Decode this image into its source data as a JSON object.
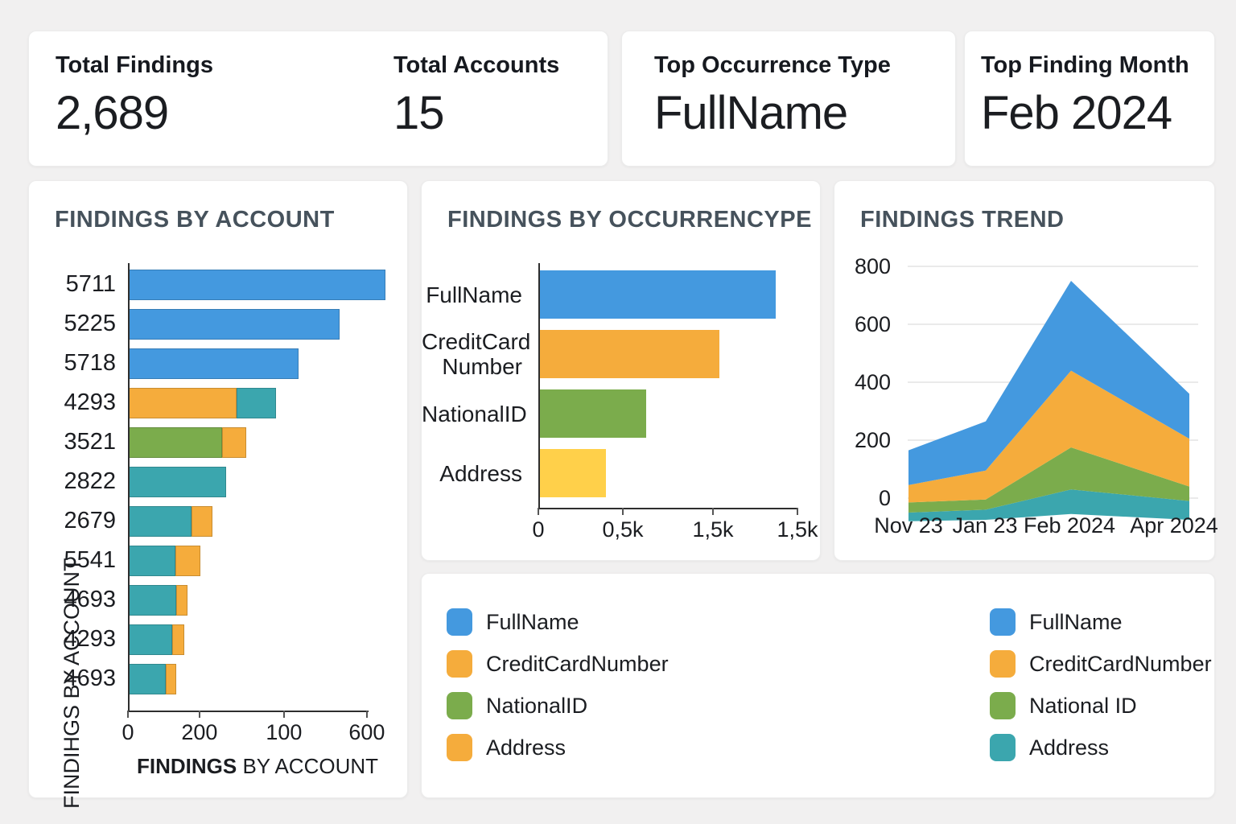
{
  "stats": [
    {
      "label": "Total Findings",
      "value": "2,689"
    },
    {
      "label": "Total Accounts",
      "value": "15"
    },
    {
      "label": "Top Occurrence Type",
      "value": "FullName"
    },
    {
      "label": "Top Finding Month",
      "value": "Feb 2024"
    }
  ],
  "colors": {
    "blue": "#4499DF",
    "orange": "#F5AC3C",
    "green": "#7BAC4C",
    "teal": "#3BA6AE",
    "yellow": "#FFD04A"
  },
  "chart_data": [
    {
      "type": "bar",
      "orientation": "horizontal",
      "title": "FINDINGS BY ACCOUNT",
      "ylabel": "FINDIHGS BY ACCOUNT",
      "xlabel_strong": "FINDINGS",
      "xlabel_rest": " BY ACCOUNT",
      "xmax": 650,
      "x_ticks": [
        {
          "label": "0",
          "pos": 0.0
        },
        {
          "label": "200",
          "pos": 0.276
        },
        {
          "label": "100",
          "pos": 0.602
        },
        {
          "label": "600",
          "pos": 0.922
        }
      ],
      "categories": [
        "5711",
        "5225",
        "5718",
        "4293",
        "3521",
        "2822",
        "2679",
        "5541",
        "4693",
        "4293",
        "4693"
      ],
      "segments": [
        [
          {
            "color": "blue",
            "value": 645
          }
        ],
        [
          {
            "color": "blue",
            "value": 530
          }
        ],
        [
          {
            "color": "blue",
            "value": 428
          }
        ],
        [
          {
            "color": "orange",
            "value": 272
          },
          {
            "color": "teal",
            "value": 100
          }
        ],
        [
          {
            "color": "green",
            "value": 236
          },
          {
            "color": "orange",
            "value": 60
          }
        ],
        [
          {
            "color": "teal",
            "value": 246
          }
        ],
        [
          {
            "color": "teal",
            "value": 160
          },
          {
            "color": "orange",
            "value": 52
          }
        ],
        [
          {
            "color": "teal",
            "value": 120
          },
          {
            "color": "orange",
            "value": 62
          }
        ],
        [
          {
            "color": "teal",
            "value": 122
          },
          {
            "color": "orange",
            "value": 28
          }
        ],
        [
          {
            "color": "teal",
            "value": 112
          },
          {
            "color": "orange",
            "value": 30
          }
        ],
        [
          {
            "color": "teal",
            "value": 95
          },
          {
            "color": "orange",
            "value": 26
          }
        ]
      ]
    },
    {
      "type": "bar",
      "orientation": "horizontal",
      "title": "FINDINGS BY OCCURRENCYPE",
      "xmax": 1500,
      "x_ticks": [
        {
          "label": "0",
          "pos": 0.0
        },
        {
          "label": "0,5k",
          "pos": 0.326
        },
        {
          "label": "1,5k",
          "pos": 0.674
        },
        {
          "label": "1,5k",
          "pos": 1.0
        }
      ],
      "categories": [
        "FullName",
        "CreditCard Number",
        "NationalID",
        "Address"
      ],
      "values": [
        1375,
        1050,
        625,
        390
      ],
      "bar_colors": [
        "blue",
        "orange",
        "green",
        "yellow"
      ]
    },
    {
      "type": "area",
      "stacked": true,
      "title": "FINDINGS TREND",
      "x": [
        "Nov 23",
        "Jan 23",
        "Feb 2024",
        "Apr 2024"
      ],
      "y_ticks": [
        0,
        200,
        400,
        600,
        800
      ],
      "ylim": [
        -100,
        800
      ],
      "grid": true,
      "series": [
        {
          "name": "Address",
          "color": "teal",
          "values": [
            30,
            35,
            85,
            65
          ]
        },
        {
          "name": "NationalID",
          "color": "green",
          "values": [
            35,
            35,
            145,
            50
          ]
        },
        {
          "name": "CreditCardNumber",
          "color": "orange",
          "values": [
            60,
            100,
            265,
            165
          ]
        },
        {
          "name": "FullName",
          "color": "blue",
          "values": [
            120,
            170,
            310,
            155
          ]
        }
      ],
      "boundaries": {
        "base": [
          -80,
          -75,
          -55,
          -75
        ],
        "teal_top": [
          -50,
          -40,
          30,
          -10
        ],
        "green_top": [
          -15,
          -5,
          175,
          40
        ],
        "orange_top": [
          45,
          95,
          440,
          205
        ],
        "blue_top": [
          165,
          265,
          750,
          360
        ]
      }
    }
  ],
  "legend_card": {
    "columns": [
      {
        "items": [
          {
            "label": "FullName",
            "color": "blue"
          },
          {
            "label": "CreditCardNumber",
            "color": "orange"
          },
          {
            "label": "NationalID",
            "color": "green"
          },
          {
            "label": "Address",
            "color": "orange"
          }
        ]
      },
      {
        "items": [
          {
            "label": "FullName",
            "color": "blue"
          },
          {
            "label": "CreditCardNumber",
            "color": "orange"
          },
          {
            "label": "National ID",
            "color": "green"
          },
          {
            "label": "Address",
            "color": "teal"
          }
        ]
      }
    ]
  }
}
